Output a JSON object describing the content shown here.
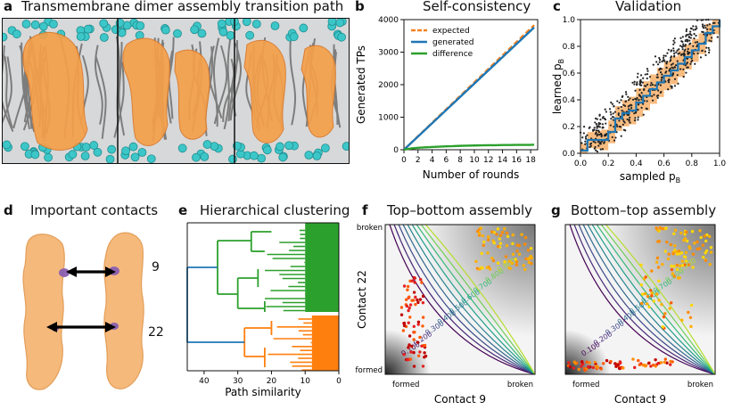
{
  "panels": {
    "a": {
      "letter": "a",
      "title": "Transmembrane dimer assembly transition path",
      "colors": {
        "protein": "#f5a04a",
        "lipid_head": "#3cc6c8",
        "lipid_tail": "#7a7a7a",
        "background": "#d9dadb"
      }
    },
    "b": {
      "letter": "b",
      "title": "Self-consistency",
      "chart_data": {
        "type": "line",
        "xlabel": "Number of rounds",
        "ylabel": "Generated TPs",
        "xlim": [
          0,
          19
        ],
        "ylim": [
          0,
          4000
        ],
        "xticks": [
          0,
          2,
          4,
          6,
          8,
          10,
          12,
          14,
          16,
          18
        ],
        "yticks": [
          0,
          1000,
          2000,
          3000,
          4000
        ],
        "legend": "top-left",
        "series": [
          {
            "name": "expected",
            "color": "#f58220",
            "dashed": true,
            "x": [
              0,
              18.5
            ],
            "y": [
              0,
              3830
            ]
          },
          {
            "name": "generated",
            "color": "#1f77b4",
            "dashed": false,
            "x": [
              0,
              18.5
            ],
            "y": [
              0,
              3760
            ]
          },
          {
            "name": "difference",
            "color": "#2ca02c",
            "dashed": false,
            "x": [
              0,
              1,
              2,
              3,
              4,
              5,
              6,
              7,
              8,
              9,
              10,
              11,
              12,
              13,
              14,
              15,
              16,
              17,
              18,
              18.5
            ],
            "y": [
              0,
              40,
              60,
              75,
              85,
              95,
              105,
              110,
              120,
              125,
              130,
              135,
              140,
              140,
              145,
              145,
              150,
              150,
              150,
              155
            ]
          }
        ]
      }
    },
    "c": {
      "letter": "c",
      "title": "Validation",
      "chart_data": {
        "type": "scatter",
        "xlabel": "sampled p",
        "xlabel_sub": "B",
        "ylabel": "learned p",
        "ylabel_sub": "B",
        "xlim": [
          0,
          1
        ],
        "ylim": [
          0,
          1
        ],
        "xticks": [
          "0.0",
          "0.2",
          "0.4",
          "0.6",
          "0.8",
          "1.0"
        ],
        "yticks": [
          "0.0",
          "0.2",
          "0.4",
          "0.6",
          "0.8",
          "1.0"
        ],
        "step_color": "#1f77b4",
        "box_color": "#f5a04a",
        "point_color": "#222222",
        "step_x": [
          0.0,
          0.05,
          0.1,
          0.15,
          0.2,
          0.25,
          0.3,
          0.35,
          0.4,
          0.45,
          0.5,
          0.55,
          0.6,
          0.65,
          0.7,
          0.75,
          0.8,
          0.85,
          0.9,
          0.95,
          1.0
        ],
        "step_y": [
          0.02,
          0.1,
          0.1,
          0.1,
          0.16,
          0.26,
          0.3,
          0.32,
          0.38,
          0.43,
          0.48,
          0.53,
          0.58,
          0.62,
          0.67,
          0.72,
          0.77,
          0.82,
          0.9,
          0.95,
          1.0
        ]
      }
    },
    "d": {
      "letter": "d",
      "title": "Important contacts",
      "labels": [
        "9",
        "22"
      ]
    },
    "e": {
      "letter": "e",
      "title": "Hierarchical clustering",
      "xlabel": "Path similarity",
      "xticks": [
        "40",
        "30",
        "20",
        "10",
        "0"
      ],
      "colors": {
        "cluster_top": "#2ca02c",
        "cluster_bottom": "#ff7f0e",
        "root": "#1f77b4"
      }
    },
    "f": {
      "letter": "f",
      "title": "Top–bottom assembly",
      "xlabel": "Contact 9",
      "ylabel": "Contact 22",
      "x_ends": [
        "formed",
        "broken"
      ],
      "y_ends": [
        "broken",
        "formed"
      ],
      "contours": [
        "0.100",
        "0.200",
        "0.300",
        "0.400",
        "0.500",
        "0.600",
        "0.700",
        "0.800",
        "0.900"
      ]
    },
    "g": {
      "letter": "g",
      "title": "Bottom–top assembly",
      "xlabel": "Contact 9",
      "x_ends": [
        "formed",
        "broken"
      ],
      "contours": [
        "0.100",
        "0.200",
        "0.300",
        "0.400",
        "0.500",
        "0.600",
        "0.700",
        "0.800",
        "0.900"
      ]
    }
  }
}
